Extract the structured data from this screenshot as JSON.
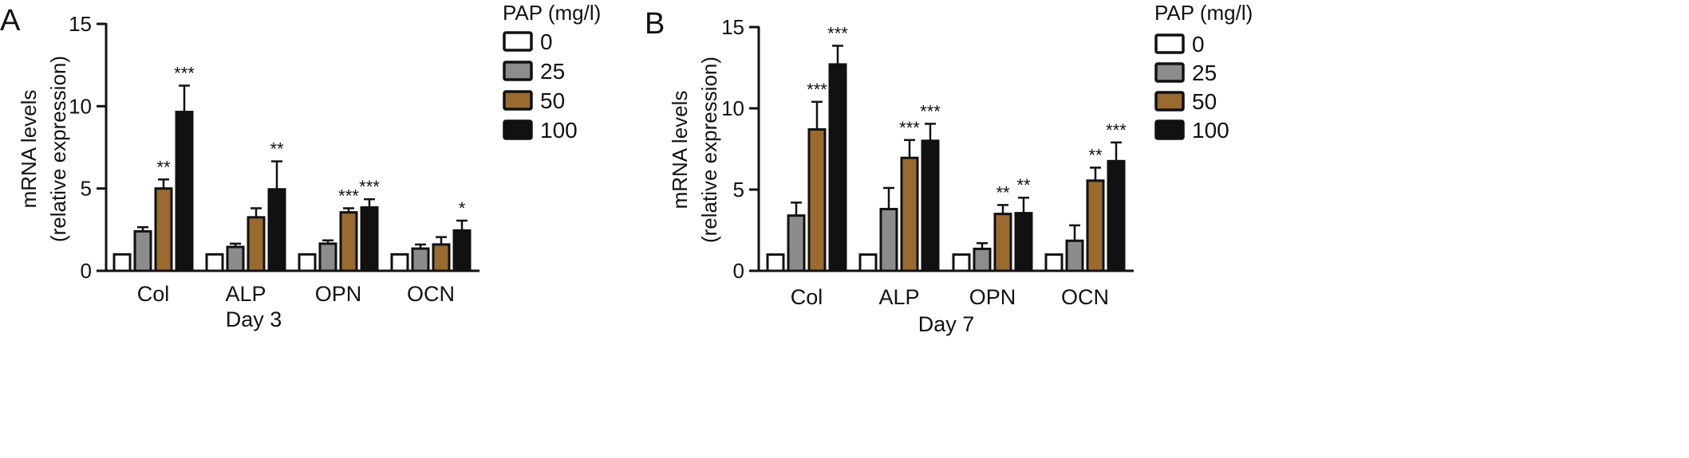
{
  "chart_data": [
    {
      "type": "bar",
      "panel_label": "A",
      "xlabel": "Day 3",
      "ylabel_lines": [
        "mRNA levels",
        "(relative expression)"
      ],
      "ylim": [
        0,
        15
      ],
      "yticks": [
        0,
        5,
        10,
        15
      ],
      "categories": [
        "Col",
        "ALP",
        "OPN",
        "OCN"
      ],
      "legend_title": "PAP (mg/l)",
      "legend_position": "top-right",
      "series": [
        {
          "name": "0",
          "color": "#ffffff",
          "values": [
            1.0,
            1.0,
            1.0,
            1.0
          ],
          "errors": [
            0,
            0,
            0,
            0
          ],
          "significance": [
            "",
            "",
            "",
            ""
          ]
        },
        {
          "name": "25",
          "color": "#8c8c8c",
          "values": [
            2.4,
            1.45,
            1.65,
            1.35
          ],
          "errors": [
            0.25,
            0.2,
            0.2,
            0.25
          ],
          "significance": [
            "",
            "",
            "",
            ""
          ]
        },
        {
          "name": "50",
          "color": "#9a6a2e",
          "values": [
            5.0,
            3.25,
            3.55,
            1.6
          ],
          "errors": [
            0.55,
            0.55,
            0.25,
            0.45
          ],
          "significance": [
            "**",
            "",
            "***",
            ""
          ]
        },
        {
          "name": "100",
          "color": "#111111",
          "values": [
            9.65,
            4.95,
            3.85,
            2.45
          ],
          "errors": [
            1.6,
            1.7,
            0.5,
            0.6
          ],
          "significance": [
            "***",
            "**",
            "***",
            "*"
          ]
        }
      ]
    },
    {
      "type": "bar",
      "panel_label": "B",
      "xlabel": "Day 7",
      "ylabel_lines": [
        "mRNA levels",
        "(relative expression)"
      ],
      "ylim": [
        0,
        15
      ],
      "yticks": [
        0,
        5,
        10,
        15
      ],
      "categories": [
        "Col",
        "ALP",
        "OPN",
        "OCN"
      ],
      "legend_title": "PAP (mg/l)",
      "legend_position": "top-right",
      "series": [
        {
          "name": "0",
          "color": "#ffffff",
          "values": [
            1.0,
            1.0,
            1.0,
            1.0
          ],
          "errors": [
            0,
            0,
            0,
            0
          ],
          "significance": [
            "",
            "",
            "",
            ""
          ]
        },
        {
          "name": "25",
          "color": "#8c8c8c",
          "values": [
            3.4,
            3.8,
            1.35,
            1.85
          ],
          "errors": [
            0.8,
            1.3,
            0.35,
            0.95
          ],
          "significance": [
            "",
            "",
            "",
            ""
          ]
        },
        {
          "name": "50",
          "color": "#9a6a2e",
          "values": [
            8.7,
            6.95,
            3.5,
            5.55
          ],
          "errors": [
            1.7,
            1.1,
            0.55,
            0.8
          ],
          "significance": [
            "***",
            "***",
            "**",
            "**"
          ]
        },
        {
          "name": "100",
          "color": "#111111",
          "values": [
            12.7,
            8.0,
            3.55,
            6.75
          ],
          "errors": [
            1.15,
            1.05,
            0.95,
            1.15
          ],
          "significance": [
            "***",
            "***",
            "**",
            "***"
          ]
        }
      ]
    }
  ]
}
